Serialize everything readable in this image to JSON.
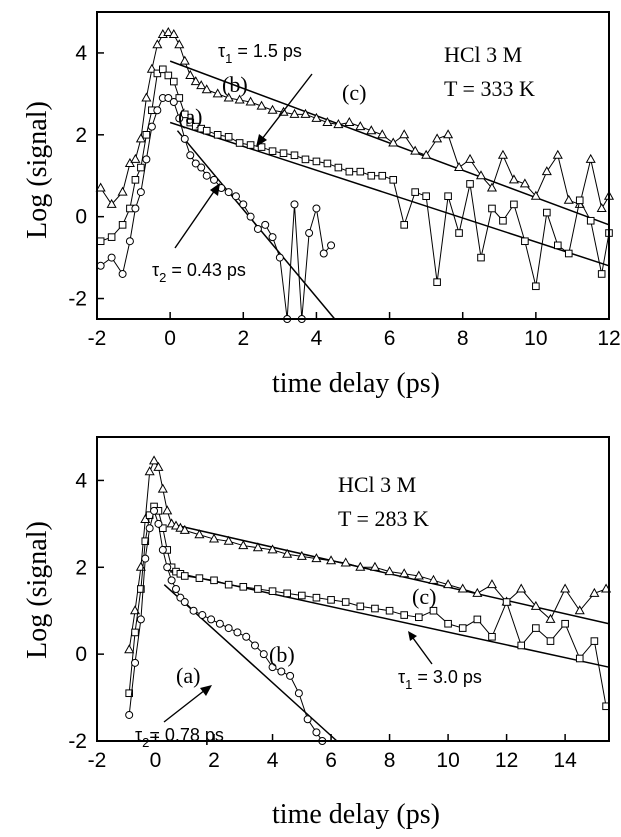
{
  "chart_data": [
    {
      "type": "scatter",
      "xlabel": "time delay (ps)",
      "ylabel": "Log (signal)",
      "xlim": [
        -2,
        12
      ],
      "ylim": [
        -2.5,
        5
      ],
      "xticks": [
        "-2",
        "0",
        "2",
        "4",
        "6",
        "8",
        "10",
        "12"
      ],
      "yticks": [
        "-2",
        "0",
        "2",
        "4"
      ],
      "annotations": {
        "sample": "HCl 3 M",
        "temperature": "T = 333 K",
        "label_a": "(a)",
        "label_b": "(b)",
        "label_c": "(c)",
        "tau1": "1.5 ps",
        "tau2": "0.43 ps"
      },
      "series": [
        {
          "name": "(c)",
          "marker": "triangle",
          "x": [
            -1.9,
            -1.6,
            -1.3,
            -1.1,
            -0.95,
            -0.8,
            -0.65,
            -0.5,
            -0.35,
            -0.2,
            -0.05,
            0.1,
            0.25,
            0.4,
            0.55,
            0.7,
            0.85,
            1.0,
            1.3,
            1.6,
            1.9,
            2.2,
            2.5,
            2.8,
            3.1,
            3.4,
            3.7,
            4.0,
            4.3,
            4.6,
            4.9,
            5.2,
            5.5,
            5.8,
            6.1,
            6.4,
            6.7,
            7.0,
            7.3,
            7.6,
            7.9,
            8.2,
            8.5,
            8.8,
            9.1,
            9.4,
            9.7,
            10.0,
            10.3,
            10.6,
            10.9,
            11.2,
            11.5,
            11.8,
            12.0
          ],
          "y": [
            0.7,
            0.3,
            0.6,
            1.3,
            1.4,
            1.9,
            2.9,
            3.6,
            4.2,
            4.45,
            4.5,
            4.45,
            4.2,
            3.8,
            3.45,
            3.3,
            3.2,
            3.1,
            3.0,
            2.9,
            2.85,
            2.8,
            2.7,
            2.6,
            2.55,
            2.5,
            2.5,
            2.4,
            2.3,
            2.25,
            2.3,
            2.2,
            2.1,
            2.0,
            1.8,
            2.0,
            1.6,
            1.5,
            1.9,
            2.0,
            1.2,
            1.4,
            1.0,
            0.7,
            1.5,
            0.9,
            0.8,
            0.5,
            1.1,
            1.5,
            0.4,
            0.3,
            1.4,
            0.2,
            0.5
          ]
        },
        {
          "name": "(b)",
          "marker": "square",
          "x": [
            -1.9,
            -1.6,
            -1.3,
            -1.1,
            -0.95,
            -0.8,
            -0.65,
            -0.5,
            -0.35,
            -0.2,
            -0.05,
            0.1,
            0.25,
            0.4,
            0.55,
            0.7,
            0.85,
            1.0,
            1.3,
            1.6,
            1.9,
            2.2,
            2.5,
            2.8,
            3.1,
            3.4,
            3.7,
            4.0,
            4.3,
            4.6,
            4.9,
            5.2,
            5.5,
            5.8,
            6.1,
            6.4,
            6.7,
            7.0,
            7.3,
            7.6,
            7.9,
            8.2,
            8.5,
            8.8,
            9.1,
            9.4,
            9.7,
            10.0,
            10.3,
            10.6,
            10.9,
            11.2,
            11.5,
            11.8,
            12.0
          ],
          "y": [
            -0.6,
            -0.5,
            -0.2,
            0.2,
            0.9,
            1.2,
            2.0,
            2.6,
            3.5,
            3.6,
            3.45,
            3.3,
            2.9,
            2.5,
            2.3,
            2.2,
            2.15,
            2.1,
            2.0,
            1.95,
            1.8,
            1.75,
            1.7,
            1.6,
            1.55,
            1.5,
            1.4,
            1.35,
            1.3,
            1.2,
            1.1,
            1.1,
            1.0,
            1.0,
            0.9,
            -0.2,
            0.6,
            0.5,
            -1.6,
            0.5,
            -0.4,
            0.8,
            -1.0,
            0.2,
            -0.1,
            0.3,
            -0.6,
            -1.7,
            0.1,
            -0.7,
            -0.9,
            0.4,
            -0.1,
            -1.4,
            -0.4
          ]
        },
        {
          "name": "(a)",
          "marker": "circle",
          "x": [
            -1.9,
            -1.6,
            -1.3,
            -1.1,
            -0.95,
            -0.8,
            -0.65,
            -0.5,
            -0.35,
            -0.2,
            -0.05,
            0.1,
            0.25,
            0.4,
            0.55,
            0.7,
            0.85,
            1.0,
            1.2,
            1.4,
            1.6,
            1.8,
            2.0,
            2.2,
            2.4,
            2.6,
            2.8,
            3.0,
            3.2,
            3.4,
            3.6,
            3.8,
            4.0,
            4.2,
            4.4
          ],
          "y": [
            -1.2,
            -1.0,
            -1.4,
            -0.6,
            0.2,
            0.6,
            1.4,
            2.2,
            2.6,
            2.9,
            2.9,
            2.8,
            2.4,
            1.9,
            1.5,
            1.3,
            1.2,
            1.0,
            0.9,
            0.7,
            0.6,
            0.5,
            0.3,
            0.0,
            -0.3,
            -0.2,
            -0.5,
            -1.0,
            -2.5,
            0.3,
            -2.5,
            -0.4,
            0.2,
            -0.9,
            -0.7
          ]
        }
      ],
      "fits": [
        {
          "x": [
            0.0,
            12.0
          ],
          "y": [
            3.8,
            -0.2
          ]
        },
        {
          "x": [
            0.0,
            12.0
          ],
          "y": [
            2.3,
            -1.2
          ]
        },
        {
          "x": [
            0.2,
            4.5
          ],
          "y": [
            2.1,
            -2.5
          ]
        }
      ]
    },
    {
      "type": "scatter",
      "xlabel": "time delay (ps)",
      "ylabel": "Log (signal)",
      "xlim": [
        -2,
        15.5
      ],
      "ylim": [
        -2,
        5
      ],
      "xticks": [
        "-2",
        "0",
        "2",
        "4",
        "6",
        "8",
        "10",
        "12",
        "14"
      ],
      "yticks": [
        "-2",
        "0",
        "2",
        "4"
      ],
      "annotations": {
        "sample": "HCl 3 M",
        "temperature": "T = 283 K",
        "label_a": "(a)",
        "label_b": "(b)",
        "label_c": "(c)",
        "tau1": "3.0 ps",
        "tau2": "0.78 ps"
      },
      "series": [
        {
          "name": "(c)",
          "marker": "triangle",
          "x": [
            -0.9,
            -0.7,
            -0.5,
            -0.35,
            -0.2,
            -0.05,
            0.1,
            0.25,
            0.4,
            0.55,
            0.7,
            0.85,
            1.0,
            1.5,
            2.0,
            2.5,
            3.0,
            3.5,
            4.0,
            4.5,
            5.0,
            5.5,
            6.0,
            6.5,
            7.0,
            7.5,
            8.0,
            8.5,
            9.0,
            9.5,
            10.0,
            10.5,
            11.0,
            11.5,
            12.0,
            12.5,
            13.0,
            13.5,
            14.0,
            14.5,
            15.0,
            15.4
          ],
          "y": [
            0.1,
            1.0,
            2.0,
            3.1,
            4.2,
            4.45,
            4.3,
            3.8,
            3.3,
            3.0,
            2.95,
            2.9,
            2.85,
            2.75,
            2.65,
            2.6,
            2.5,
            2.45,
            2.4,
            2.3,
            2.25,
            2.2,
            2.15,
            2.1,
            2.0,
            2.0,
            1.9,
            1.85,
            1.8,
            1.7,
            1.6,
            1.5,
            1.4,
            1.6,
            1.2,
            1.5,
            1.1,
            0.8,
            1.5,
            1.0,
            1.4,
            1.5
          ]
        },
        {
          "name": "(b)",
          "marker": "square",
          "x": [
            -0.9,
            -0.7,
            -0.5,
            -0.35,
            -0.2,
            -0.05,
            0.1,
            0.25,
            0.4,
            0.55,
            0.7,
            0.85,
            1.0,
            1.5,
            2.0,
            2.5,
            3.0,
            3.5,
            4.0,
            4.5,
            5.0,
            5.5,
            6.0,
            6.5,
            7.0,
            7.5,
            8.0,
            8.5,
            9.0,
            9.5,
            10.0,
            10.5,
            11.0,
            11.5,
            12.0,
            12.5,
            13.0,
            13.5,
            14.0,
            14.5,
            15.0,
            15.4
          ],
          "y": [
            -0.9,
            0.5,
            1.5,
            2.6,
            3.2,
            3.4,
            3.3,
            2.9,
            2.4,
            2.0,
            1.9,
            1.85,
            1.8,
            1.75,
            1.7,
            1.6,
            1.55,
            1.5,
            1.45,
            1.4,
            1.35,
            1.3,
            1.25,
            1.2,
            1.1,
            1.05,
            1.0,
            0.9,
            0.85,
            1.0,
            0.7,
            0.6,
            0.8,
            0.4,
            1.2,
            0.2,
            0.6,
            0.3,
            0.7,
            -0.1,
            0.3,
            -1.2
          ]
        },
        {
          "name": "(a)",
          "marker": "circle",
          "x": [
            -0.9,
            -0.7,
            -0.5,
            -0.35,
            -0.2,
            -0.05,
            0.1,
            0.25,
            0.4,
            0.55,
            0.7,
            0.85,
            1.0,
            1.3,
            1.6,
            1.9,
            2.2,
            2.5,
            2.8,
            3.1,
            3.4,
            3.7,
            4.0,
            4.3,
            4.6,
            4.9,
            5.2,
            5.5,
            5.7
          ],
          "y": [
            -1.4,
            -0.2,
            0.8,
            2.2,
            2.9,
            3.3,
            3.0,
            2.4,
            2.0,
            1.7,
            1.5,
            1.3,
            1.2,
            1.0,
            0.9,
            0.8,
            0.7,
            0.6,
            0.5,
            0.4,
            0.2,
            0.0,
            -0.3,
            -0.4,
            -0.5,
            -0.9,
            -1.5,
            -1.8,
            -2.0
          ]
        }
      ],
      "fits": [
        {
          "x": [
            0.5,
            15.5
          ],
          "y": [
            3.0,
            0.7
          ]
        },
        {
          "x": [
            0.5,
            15.5
          ],
          "y": [
            1.9,
            -0.3
          ]
        },
        {
          "x": [
            0.3,
            6.2
          ],
          "y": [
            1.6,
            -2.0
          ]
        }
      ]
    }
  ]
}
